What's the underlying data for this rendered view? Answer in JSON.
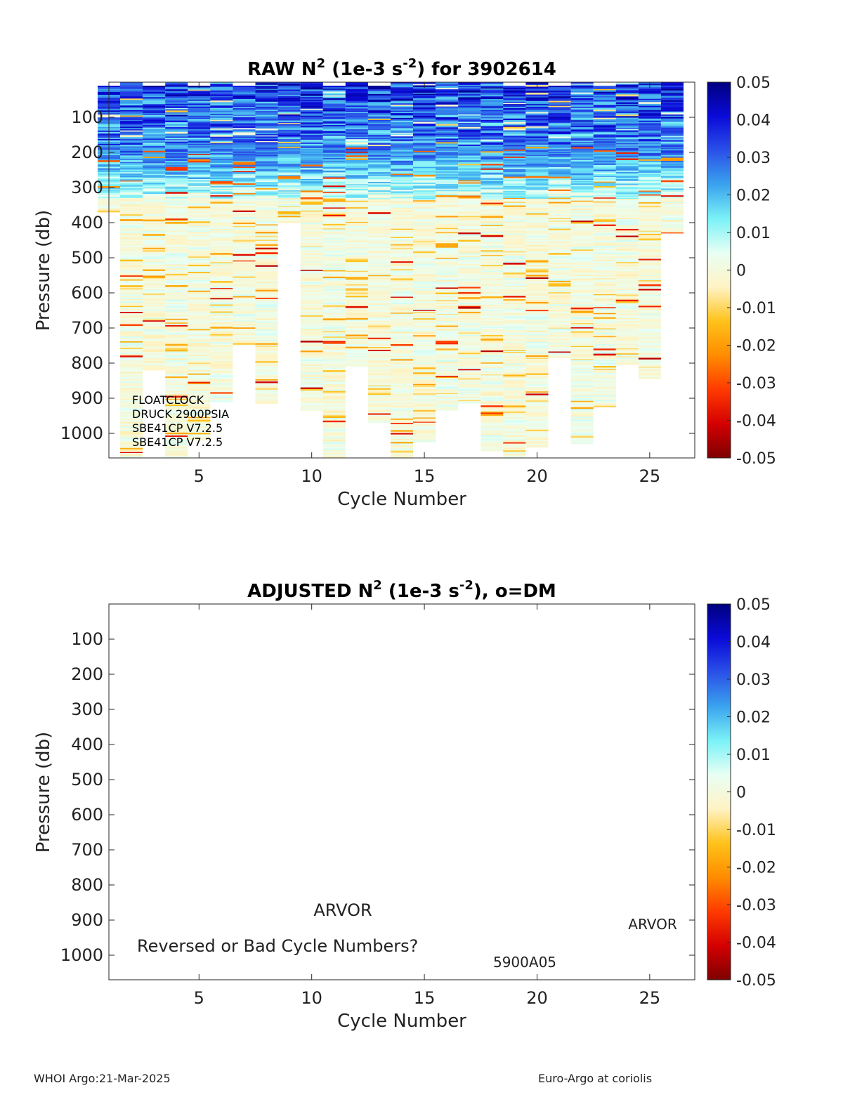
{
  "colorbar": {
    "ticks": [
      "0.05",
      "0.04",
      "0.03",
      "0.02",
      "0.01",
      "0",
      "-0.01",
      "-0.02",
      "-0.03",
      "-0.04",
      "-0.05"
    ],
    "colormap": [
      "#7f0000",
      "#d40000",
      "#ff3a00",
      "#ff8c00",
      "#ffc21a",
      "#fff3c4",
      "#e8fff4",
      "#7af2f7",
      "#3aa3ee",
      "#2a50e8",
      "#0a0ad8",
      "#000080"
    ]
  },
  "chart_data": [
    {
      "type": "heatmap",
      "title_prefix": "RAW N",
      "title_sup1": "2",
      "title_mid": " (1e-3 s",
      "title_sup2": "-2",
      "title_suffix": ") for 3902614",
      "xlabel": "Cycle Number",
      "ylabel": "Pressure (db)",
      "xlim": [
        1,
        27
      ],
      "ylim": [
        0,
        1070
      ],
      "y_reversed": true,
      "xticks": [
        5,
        10,
        15,
        20,
        25
      ],
      "yticks": [
        100,
        200,
        300,
        400,
        500,
        600,
        700,
        800,
        900,
        1000
      ],
      "clim": [
        -0.05,
        0.05
      ],
      "cycles": [
        1,
        2,
        3,
        4,
        5,
        6,
        7,
        8,
        9,
        10,
        11,
        12,
        13,
        14,
        15,
        16,
        17,
        18,
        19,
        20,
        21,
        22,
        23,
        24,
        25,
        26
      ],
      "profile_min_pressure_db": [
        10,
        0,
        10,
        0,
        10,
        0,
        10,
        0,
        0,
        0,
        10,
        0,
        10,
        0,
        0,
        0,
        0,
        0,
        10,
        0,
        10,
        0,
        10,
        0,
        0,
        0
      ],
      "profile_max_pressure_db": [
        370,
        1070,
        820,
        1070,
        1020,
        910,
        750,
        915,
        400,
        935,
        1070,
        810,
        970,
        1070,
        1025,
        935,
        915,
        1050,
        1070,
        1040,
        785,
        1030,
        925,
        805,
        845,
        430
      ],
      "summary": "Strong positive N2 (0.03-0.05) from surface to ~250 db; near-zero values (-0.01 to 0.01) below ~350 db with scattered slightly negative layers",
      "annotations": [
        "FLOATCLOCK",
        "DRUCK 2900PSIA",
        "SBE41CP V7.2.5",
        "SBE41CP V7.2.5"
      ]
    },
    {
      "type": "heatmap",
      "title_prefix": "ADJUSTED N",
      "title_sup1": "2",
      "title_mid": " (1e-3 s",
      "title_sup2": "-2",
      "title_suffix": "), o=DM",
      "xlabel": "Cycle Number",
      "ylabel": "Pressure (db)",
      "xlim": [
        1,
        27
      ],
      "ylim": [
        0,
        1070
      ],
      "y_reversed": true,
      "xticks": [
        5,
        10,
        15,
        20,
        25
      ],
      "yticks": [
        100,
        200,
        300,
        400,
        500,
        600,
        700,
        800,
        900,
        1000
      ],
      "clim": [
        -0.05,
        0.05
      ],
      "annotations": {
        "platform_center": "ARVOR",
        "warning": "Reversed or Bad Cycle Numbers?",
        "platform_right": "ARVOR",
        "wmo_code": "5900A05"
      }
    }
  ],
  "footer": {
    "left": "WHOI Argo:21-Mar-2025",
    "right": "Euro-Argo at coriolis"
  }
}
